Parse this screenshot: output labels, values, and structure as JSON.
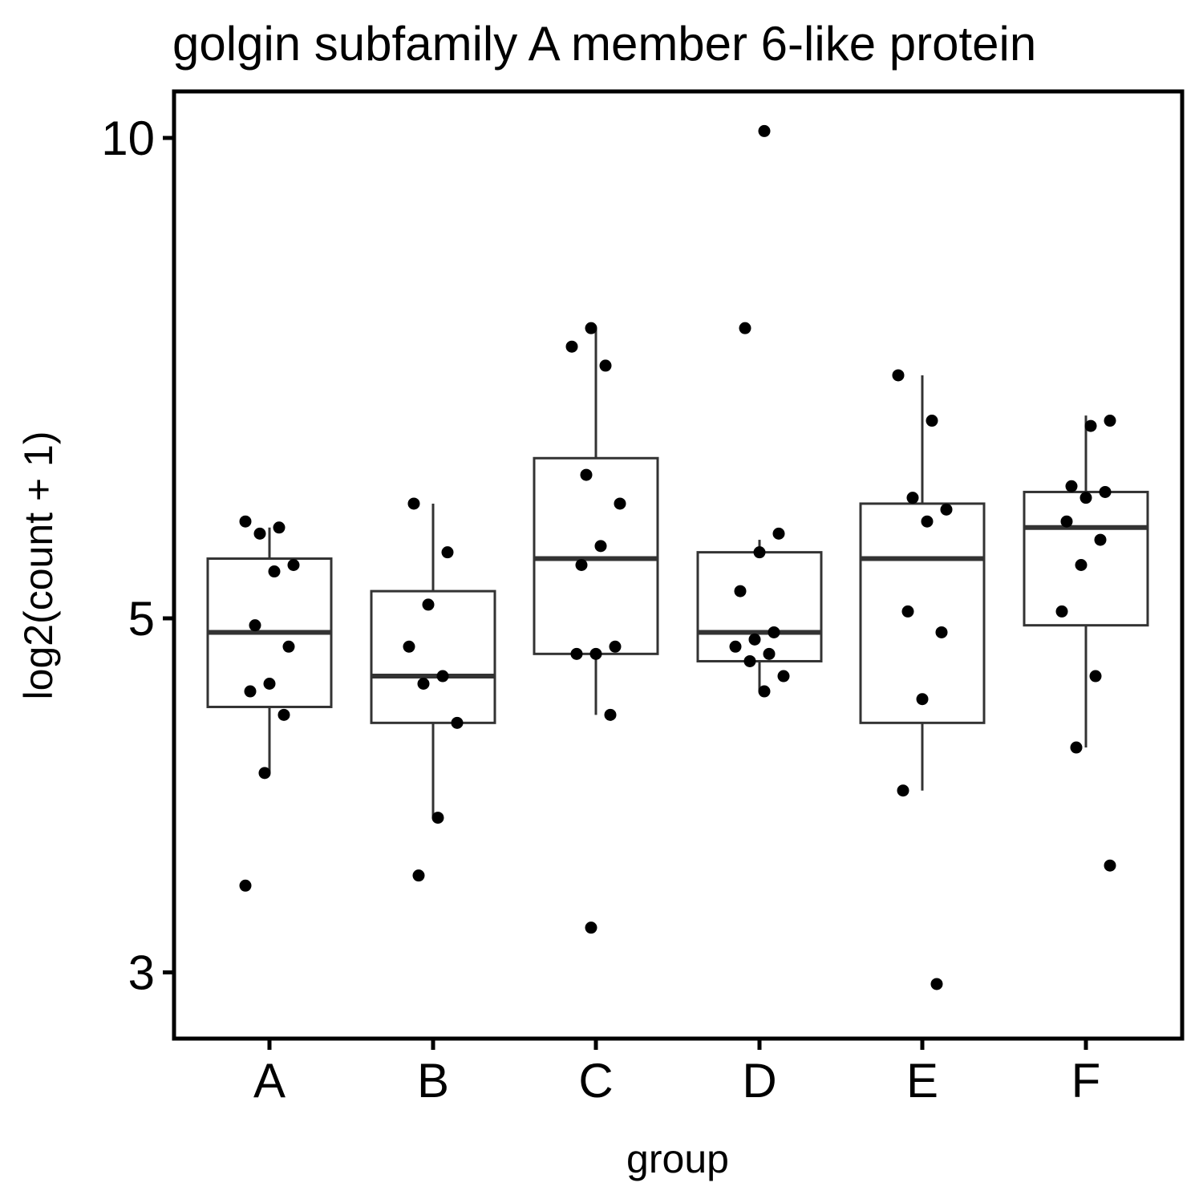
{
  "chart_data": {
    "type": "boxplot",
    "title": "golgin subfamily A member 6-like protein",
    "xlabel": "group",
    "ylabel": "log2(count + 1)",
    "y_scale": "log",
    "ylim": [
      2.8,
      10.5
    ],
    "y_ticks": [
      3,
      5,
      10
    ],
    "y_tick_labels": [
      "3",
      "5",
      "10"
    ],
    "categories": [
      "A",
      "B",
      "C",
      "D",
      "E",
      "F"
    ],
    "boxes": [
      {
        "group": "A",
        "lower_whisker": 4.0,
        "q1": 4.4,
        "median": 4.9,
        "q3": 5.45,
        "upper_whisker": 5.7
      },
      {
        "group": "B",
        "lower_whisker": 3.75,
        "q1": 4.3,
        "median": 4.6,
        "q3": 5.2,
        "upper_whisker": 5.9
      },
      {
        "group": "C",
        "lower_whisker": 4.35,
        "q1": 4.75,
        "median": 5.45,
        "q3": 6.3,
        "upper_whisker": 7.6
      },
      {
        "group": "D",
        "lower_whisker": 4.5,
        "q1": 4.7,
        "median": 4.9,
        "q3": 5.5,
        "upper_whisker": 5.6
      },
      {
        "group": "E",
        "lower_whisker": 3.9,
        "q1": 4.3,
        "median": 5.45,
        "q3": 5.9,
        "upper_whisker": 7.1
      },
      {
        "group": "F",
        "lower_whisker": 4.15,
        "q1": 4.95,
        "median": 5.7,
        "q3": 6.0,
        "upper_whisker": 6.7
      }
    ],
    "points": [
      {
        "group": "A",
        "values": [
          3.4,
          4.0,
          4.35,
          4.5,
          4.55,
          4.8,
          4.95,
          5.35,
          5.4,
          5.65,
          5.7,
          5.75
        ]
      },
      {
        "group": "B",
        "values": [
          3.45,
          3.75,
          4.3,
          4.55,
          4.6,
          4.8,
          5.1,
          5.5,
          5.9
        ]
      },
      {
        "group": "C",
        "values": [
          3.2,
          4.35,
          4.75,
          4.75,
          4.8,
          5.4,
          5.55,
          5.9,
          6.15,
          7.2,
          7.4,
          7.6
        ]
      },
      {
        "group": "D",
        "values": [
          4.5,
          4.6,
          4.7,
          4.75,
          4.8,
          4.85,
          4.9,
          5.2,
          5.5,
          5.65,
          7.6,
          10.1
        ]
      },
      {
        "group": "E",
        "values": [
          2.95,
          3.9,
          4.45,
          4.9,
          5.05,
          5.75,
          5.85,
          5.95,
          6.65,
          7.1
        ]
      },
      {
        "group": "F",
        "values": [
          3.5,
          4.15,
          4.6,
          5.05,
          5.4,
          5.6,
          5.75,
          5.95,
          6.0,
          6.05,
          6.6,
          6.65
        ]
      }
    ],
    "grid": false,
    "legend": "none"
  }
}
